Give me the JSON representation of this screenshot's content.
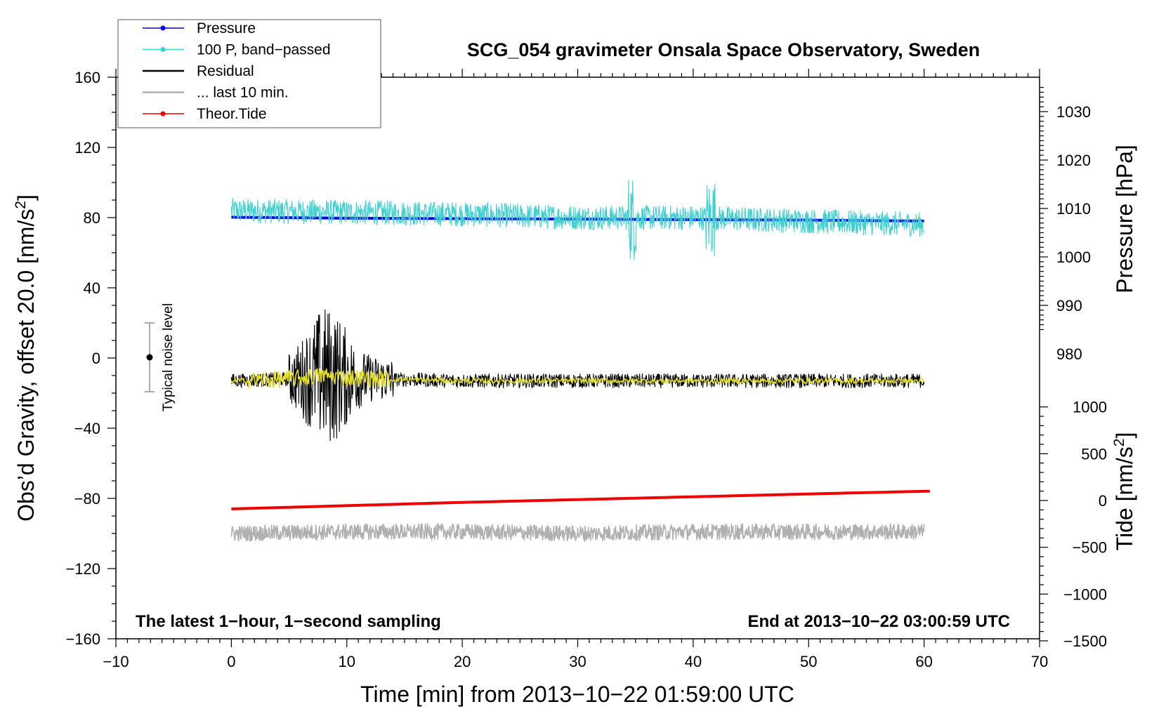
{
  "chart_data": {
    "type": "line",
    "title": "SCG_054 gravimeter Onsala Space Observatory, Sweden",
    "xlabel": "Time [min] from 2013−10−22 01:59:00 UTC",
    "xlim": [
      -10,
      70
    ],
    "x_ticks": [
      -10,
      0,
      10,
      20,
      30,
      40,
      50,
      60,
      70
    ],
    "x_tick_labels": [
      "−10",
      "0",
      "10",
      "20",
      "30",
      "40",
      "50",
      "60",
      "70"
    ],
    "left_axis": {
      "label_prefix": "Obs’d Gravity, offset 20.0 [nm/s",
      "label_sup": "2",
      "label_suffix": "]",
      "ylim": [
        -160,
        160
      ],
      "ticks": [
        -160,
        -120,
        -80,
        -40,
        0,
        40,
        80,
        120,
        160
      ],
      "tick_labels": [
        "−160",
        "−120",
        "−80",
        "−40",
        "0",
        "40",
        "80",
        "120",
        "160"
      ]
    },
    "pressure_axis": {
      "label": "Pressure [hPa]",
      "ticks": [
        980,
        990,
        1000,
        1010,
        1020,
        1030
      ],
      "tick_labels": [
        "980",
        "990",
        "1000",
        "1010",
        "1020",
        "1030"
      ]
    },
    "tide_axis": {
      "label_prefix": "Tide [nm/s",
      "label_sup": "2",
      "label_suffix": "]",
      "ticks": [
        -1500,
        -1000,
        -500,
        0,
        500,
        1000
      ],
      "tick_labels": [
        "−1500",
        "−1000",
        "−500",
        "0",
        "500",
        "1000"
      ]
    },
    "series": [
      {
        "name": "Pressure",
        "color": "#0000ee",
        "axis": "pressure",
        "x": [
          0,
          10,
          20,
          30,
          40,
          50,
          60
        ],
        "y": [
          1008.2,
          1008.0,
          1007.9,
          1007.8,
          1007.7,
          1007.6,
          1007.4
        ]
      },
      {
        "name": "100 P, band−passed",
        "color": "#40d0d0",
        "axis": "gravity",
        "x": [
          0,
          10,
          20,
          30,
          40,
          50,
          60
        ],
        "y": [
          84,
          83,
          82,
          80,
          80,
          78,
          76
        ]
      },
      {
        "name": "Residual",
        "color": "#000000",
        "axis": "gravity",
        "x": [
          0,
          5,
          8,
          10,
          13,
          20,
          30,
          40,
          50,
          60
        ],
        "y": [
          -13,
          -12,
          -10,
          -11,
          -12,
          -13,
          -13,
          -13,
          -13,
          -13
        ]
      },
      {
        "name": "... last 10 min.",
        "color": "#b0b0b0",
        "axis": "gravity",
        "x": [
          0,
          10,
          20,
          30,
          40,
          50,
          60
        ],
        "y": [
          -100,
          -99,
          -99,
          -100,
          -99,
          -99,
          -99
        ]
      },
      {
        "name": "Theor.Tide",
        "color": "#ee0000",
        "axis": "tide",
        "x": [
          0,
          10,
          20,
          30,
          40,
          50,
          60.5
        ],
        "y": [
          -90,
          -55,
          -20,
          10,
          40,
          70,
          100
        ]
      }
    ],
    "annotations": {
      "noise_label": "Typical noise level",
      "bottom_left": "The latest 1−hour, 1−second sampling",
      "bottom_right": "End at 2013−10−22 03:00:59 UTC"
    },
    "legend_position": "top-left",
    "grid": false
  }
}
